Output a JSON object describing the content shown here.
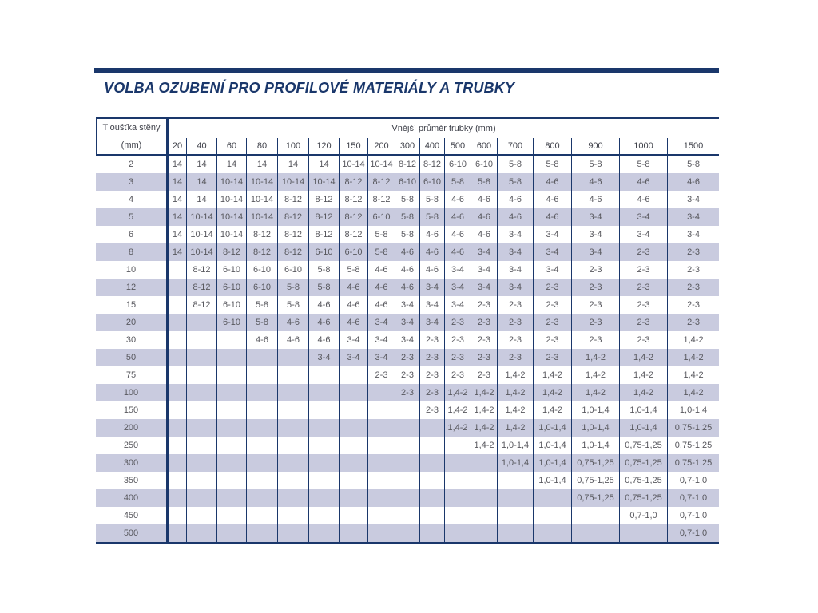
{
  "page": {
    "title": "VOLBA OZUBENÍ PRO PROFILOVÉ MATERIÁLY A TRUBKY"
  },
  "colors": {
    "accent": "#1a376b",
    "stripe": "#c9cbdf",
    "header_text": "#3d3f48",
    "cell_text": "#58585e"
  },
  "table": {
    "row_header_title": "Tloušťka stěny",
    "row_header_unit": "(mm)",
    "col_group_header": "Vnější průměr trubky (mm)",
    "columns": [
      "20",
      "40",
      "60",
      "80",
      "100",
      "120",
      "150",
      "200",
      "300",
      "400",
      "500",
      "600",
      "700",
      "800",
      "900",
      "1000",
      "1500"
    ],
    "rows": [
      {
        "label": "2",
        "values": [
          "14",
          "14",
          "14",
          "14",
          "14",
          "14",
          "10-14",
          "10-14",
          "8-12",
          "8-12",
          "6-10",
          "6-10",
          "5-8",
          "5-8",
          "5-8",
          "5-8",
          "5-8"
        ]
      },
      {
        "label": "3",
        "values": [
          "14",
          "14",
          "10-14",
          "10-14",
          "10-14",
          "10-14",
          "8-12",
          "8-12",
          "6-10",
          "6-10",
          "5-8",
          "5-8",
          "5-8",
          "4-6",
          "4-6",
          "4-6",
          "4-6"
        ]
      },
      {
        "label": "4",
        "values": [
          "14",
          "14",
          "10-14",
          "10-14",
          "8-12",
          "8-12",
          "8-12",
          "8-12",
          "5-8",
          "5-8",
          "4-6",
          "4-6",
          "4-6",
          "4-6",
          "4-6",
          "4-6",
          "3-4"
        ]
      },
      {
        "label": "5",
        "values": [
          "14",
          "10-14",
          "10-14",
          "10-14",
          "8-12",
          "8-12",
          "8-12",
          "6-10",
          "5-8",
          "5-8",
          "4-6",
          "4-6",
          "4-6",
          "4-6",
          "3-4",
          "3-4",
          "3-4"
        ]
      },
      {
        "label": "6",
        "values": [
          "14",
          "10-14",
          "10-14",
          "8-12",
          "8-12",
          "8-12",
          "8-12",
          "5-8",
          "5-8",
          "4-6",
          "4-6",
          "4-6",
          "3-4",
          "3-4",
          "3-4",
          "3-4",
          "3-4"
        ]
      },
      {
        "label": "8",
        "values": [
          "14",
          "10-14",
          "8-12",
          "8-12",
          "8-12",
          "6-10",
          "6-10",
          "5-8",
          "4-6",
          "4-6",
          "4-6",
          "3-4",
          "3-4",
          "3-4",
          "3-4",
          "2-3",
          "2-3"
        ]
      },
      {
        "label": "10",
        "values": [
          "",
          "8-12",
          "6-10",
          "6-10",
          "6-10",
          "5-8",
          "5-8",
          "4-6",
          "4-6",
          "4-6",
          "3-4",
          "3-4",
          "3-4",
          "3-4",
          "2-3",
          "2-3",
          "2-3"
        ]
      },
      {
        "label": "12",
        "values": [
          "",
          "8-12",
          "6-10",
          "6-10",
          "5-8",
          "5-8",
          "4-6",
          "4-6",
          "4-6",
          "3-4",
          "3-4",
          "3-4",
          "3-4",
          "2-3",
          "2-3",
          "2-3",
          "2-3"
        ]
      },
      {
        "label": "15",
        "values": [
          "",
          "8-12",
          "6-10",
          "5-8",
          "5-8",
          "4-6",
          "4-6",
          "4-6",
          "3-4",
          "3-4",
          "3-4",
          "2-3",
          "2-3",
          "2-3",
          "2-3",
          "2-3",
          "2-3"
        ]
      },
      {
        "label": "20",
        "values": [
          "",
          "",
          "6-10",
          "5-8",
          "4-6",
          "4-6",
          "4-6",
          "3-4",
          "3-4",
          "3-4",
          "2-3",
          "2-3",
          "2-3",
          "2-3",
          "2-3",
          "2-3",
          "2-3"
        ]
      },
      {
        "label": "30",
        "values": [
          "",
          "",
          "",
          "4-6",
          "4-6",
          "4-6",
          "3-4",
          "3-4",
          "3-4",
          "2-3",
          "2-3",
          "2-3",
          "2-3",
          "2-3",
          "2-3",
          "2-3",
          "1,4-2"
        ]
      },
      {
        "label": "50",
        "values": [
          "",
          "",
          "",
          "",
          "",
          "3-4",
          "3-4",
          "3-4",
          "2-3",
          "2-3",
          "2-3",
          "2-3",
          "2-3",
          "2-3",
          "1,4-2",
          "1,4-2",
          "1,4-2"
        ]
      },
      {
        "label": "75",
        "values": [
          "",
          "",
          "",
          "",
          "",
          "",
          "",
          "2-3",
          "2-3",
          "2-3",
          "2-3",
          "2-3",
          "1,4-2",
          "1,4-2",
          "1,4-2",
          "1,4-2",
          "1,4-2"
        ]
      },
      {
        "label": "100",
        "values": [
          "",
          "",
          "",
          "",
          "",
          "",
          "",
          "",
          "2-3",
          "2-3",
          "1,4-2",
          "1,4-2",
          "1,4-2",
          "1,4-2",
          "1,4-2",
          "1,4-2",
          "1,4-2"
        ]
      },
      {
        "label": "150",
        "values": [
          "",
          "",
          "",
          "",
          "",
          "",
          "",
          "",
          "",
          "2-3",
          "1,4-2",
          "1,4-2",
          "1,4-2",
          "1,4-2",
          "1,0-1,4",
          "1,0-1,4",
          "1,0-1,4"
        ]
      },
      {
        "label": "200",
        "values": [
          "",
          "",
          "",
          "",
          "",
          "",
          "",
          "",
          "",
          "",
          "1,4-2",
          "1,4-2",
          "1,4-2",
          "1,0-1,4",
          "1,0-1,4",
          "1,0-1,4",
          "0,75-1,25"
        ]
      },
      {
        "label": "250",
        "values": [
          "",
          "",
          "",
          "",
          "",
          "",
          "",
          "",
          "",
          "",
          "",
          "1,4-2",
          "1,0-1,4",
          "1,0-1,4",
          "1,0-1,4",
          "0,75-1,25",
          "0,75-1,25"
        ]
      },
      {
        "label": "300",
        "values": [
          "",
          "",
          "",
          "",
          "",
          "",
          "",
          "",
          "",
          "",
          "",
          "",
          "1,0-1,4",
          "1,0-1,4",
          "0,75-1,25",
          "0,75-1,25",
          "0,75-1,25"
        ]
      },
      {
        "label": "350",
        "values": [
          "",
          "",
          "",
          "",
          "",
          "",
          "",
          "",
          "",
          "",
          "",
          "",
          "",
          "1,0-1,4",
          "0,75-1,25",
          "0,75-1,25",
          "0,7-1,0"
        ]
      },
      {
        "label": "400",
        "values": [
          "",
          "",
          "",
          "",
          "",
          "",
          "",
          "",
          "",
          "",
          "",
          "",
          "",
          "",
          "0,75-1,25",
          "0,75-1,25",
          "0,7-1,0"
        ]
      },
      {
        "label": "450",
        "values": [
          "",
          "",
          "",
          "",
          "",
          "",
          "",
          "",
          "",
          "",
          "",
          "",
          "",
          "",
          "",
          "0,7-1,0",
          "0,7-1,0"
        ]
      },
      {
        "label": "500",
        "values": [
          "",
          "",
          "",
          "",
          "",
          "",
          "",
          "",
          "",
          "",
          "",
          "",
          "",
          "",
          "",
          "",
          "0,7-1,0"
        ]
      }
    ]
  }
}
